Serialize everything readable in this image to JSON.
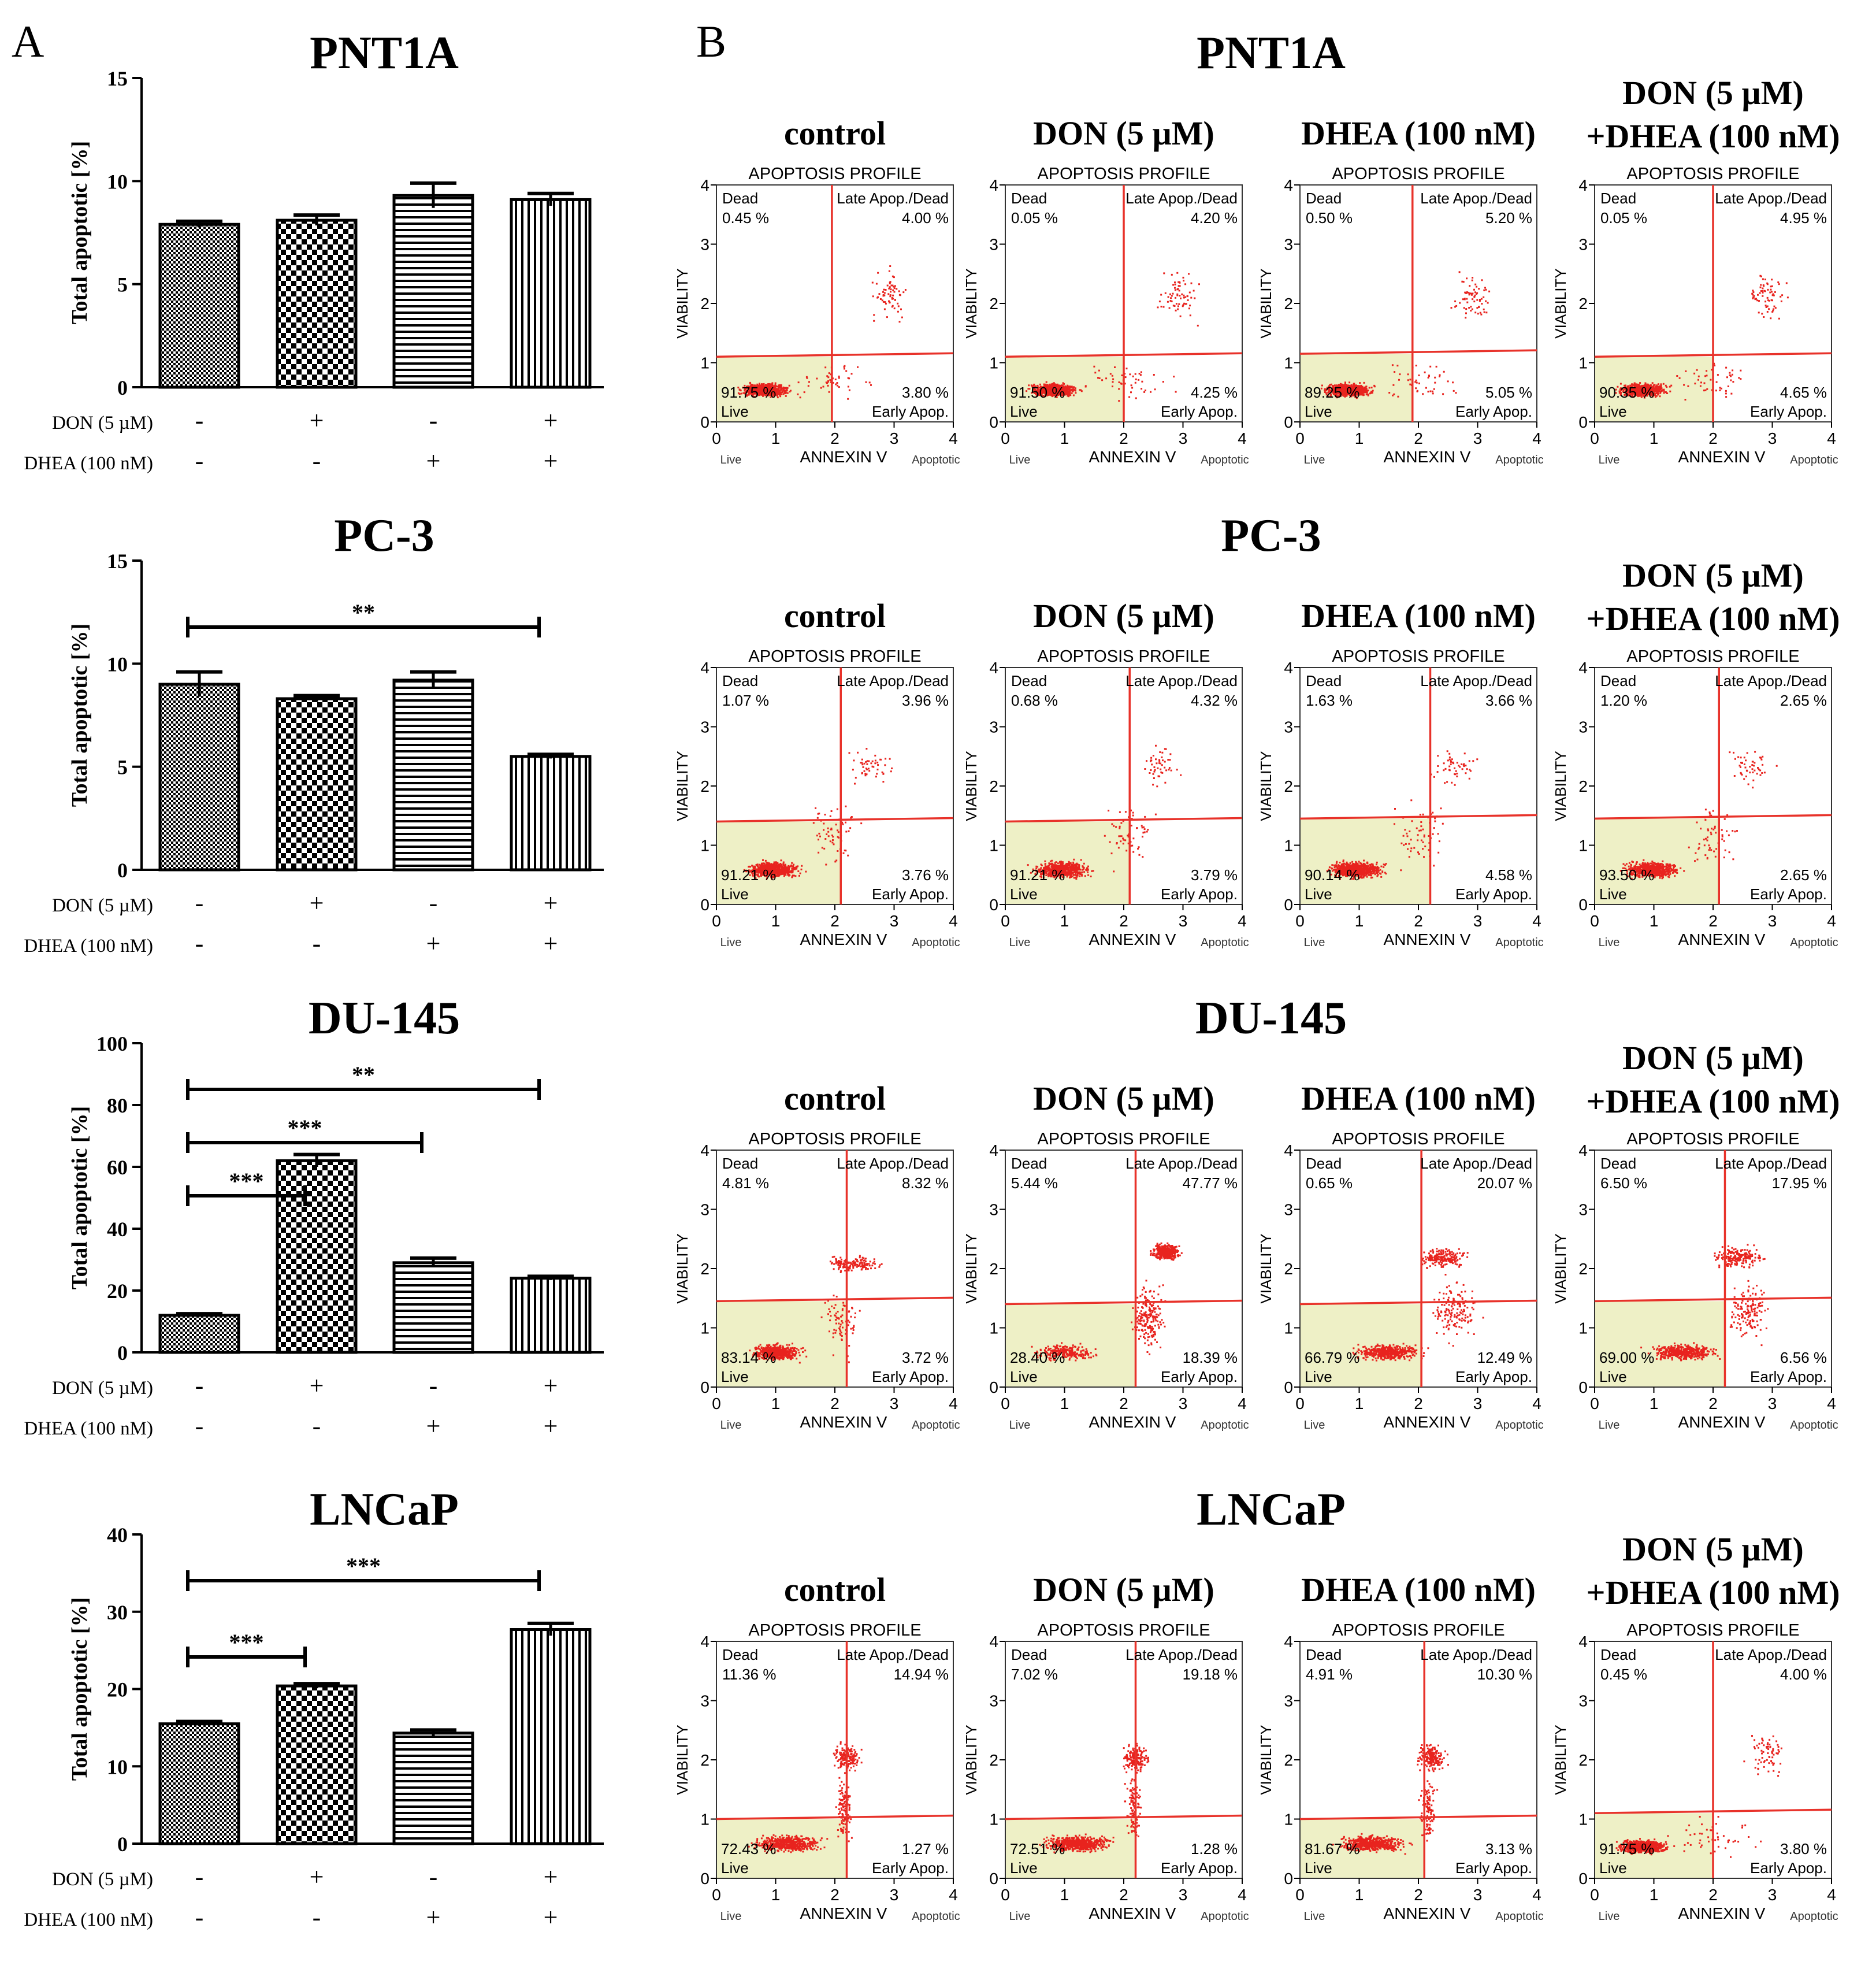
{
  "panel_labels": {
    "a": "A",
    "b": "B"
  },
  "colors": {
    "dot": "#e8231e",
    "line": "#e8322a",
    "live_fill": "#eef0c6",
    "axis": "#000000"
  },
  "quadrant_text": {
    "title": "APOPTOSIS PROFILE",
    "dead": "Dead",
    "late": "Late Apop./Dead",
    "live": "Live",
    "early": "Early Apop.",
    "ylabel": "VIABILITY",
    "xlabel": "ANNEXIN V",
    "xleft": "Live",
    "xright": "Apoptotic"
  },
  "chart_data": [
    {
      "type": "bar",
      "title": "PNT1A",
      "ylabel": "Total apoptotic [%]",
      "ylim": [
        0,
        15
      ],
      "yticks": [
        "0",
        "5",
        "10",
        "15"
      ],
      "categories": [
        "control",
        "DON",
        "DHEA",
        "DON+DHEA"
      ],
      "values": [
        7.9,
        8.1,
        9.3,
        9.1
      ],
      "errors": [
        0.15,
        0.25,
        0.6,
        0.3
      ],
      "row_labels": [
        "DON (5 µM)",
        "DHEA (100 nM)"
      ],
      "don": [
        "-",
        "+",
        "-",
        "+"
      ],
      "dhea": [
        "-",
        "-",
        "+",
        "+"
      ],
      "significance": []
    },
    {
      "type": "bar",
      "title": "PC-3",
      "ylabel": "Total apoptotic [%]",
      "ylim": [
        0,
        15
      ],
      "yticks": [
        "0",
        "5",
        "10",
        "15"
      ],
      "categories": [
        "control",
        "DON",
        "DHEA",
        "DON+DHEA"
      ],
      "values": [
        9.0,
        8.3,
        9.2,
        5.5
      ],
      "errors": [
        0.6,
        0.15,
        0.4,
        0.1
      ],
      "row_labels": [
        "DON (5 µM)",
        "DHEA (100 nM)"
      ],
      "don": [
        "-",
        "+",
        "-",
        "+"
      ],
      "dhea": [
        "-",
        "-",
        "+",
        "+"
      ],
      "significance": [
        {
          "from": 0,
          "to": 3,
          "label": "**"
        }
      ]
    },
    {
      "type": "bar",
      "title": "DU-145",
      "ylabel": "Total apoptotic [%]",
      "ylim": [
        0,
        100
      ],
      "yticks": [
        "0",
        "20",
        "40",
        "60",
        "80",
        "100"
      ],
      "categories": [
        "control",
        "DON",
        "DHEA",
        "DON+DHEA"
      ],
      "values": [
        12,
        62,
        29,
        24
      ],
      "errors": [
        0.5,
        2,
        1.5,
        0.6
      ],
      "row_labels": [
        "DON (5 µM)",
        "DHEA (100 nM)"
      ],
      "don": [
        "-",
        "+",
        "-",
        "+"
      ],
      "dhea": [
        "-",
        "-",
        "+",
        "+"
      ],
      "significance": [
        {
          "from": 0,
          "to": 3,
          "label": "**"
        },
        {
          "from": 0,
          "to": 2,
          "label": "***"
        },
        {
          "from": 0,
          "to": 1,
          "label": "***"
        }
      ]
    },
    {
      "type": "bar",
      "title": "LNCaP",
      "ylabel": "Total apoptotic [%]",
      "ylim": [
        0,
        40
      ],
      "yticks": [
        "0",
        "10",
        "20",
        "30",
        "40"
      ],
      "categories": [
        "control",
        "DON",
        "DHEA",
        "DON+DHEA"
      ],
      "values": [
        15.5,
        20.4,
        14.3,
        27.7
      ],
      "errors": [
        0.3,
        0.3,
        0.4,
        0.8
      ],
      "row_labels": [
        "DON (5 µM)",
        "DHEA (100 nM)"
      ],
      "don": [
        "-",
        "+",
        "-",
        "+"
      ],
      "dhea": [
        "-",
        "-",
        "+",
        "+"
      ],
      "significance": [
        {
          "from": 0,
          "to": 3,
          "label": "***"
        },
        {
          "from": 0,
          "to": 1,
          "label": "***"
        }
      ]
    }
  ],
  "flow_rows": [
    {
      "cell": "PNT1A",
      "plots": [
        {
          "t1": "control",
          "t2": "",
          "dead": "0.45 %",
          "late": "4.00 %",
          "live": "91.75 %",
          "early": "3.80 %",
          "hy": 1.1,
          "vx": 1.95,
          "sp": "a"
        },
        {
          "t1": "DON (5 µM)",
          "t2": "",
          "dead": "0.05 %",
          "late": "4.20 %",
          "live": "91.50 %",
          "early": "4.25 %",
          "hy": 1.1,
          "vx": 2.0,
          "sp": "a"
        },
        {
          "t1": "DHEA (100 nM)",
          "t2": "",
          "dead": "0.50 %",
          "late": "5.20 %",
          "live": "89.25 %",
          "early": "5.05 %",
          "hy": 1.15,
          "vx": 1.9,
          "sp": "a"
        },
        {
          "t1": "DON (5 µM)",
          "t2": "+DHEA (100 nM)",
          "dead": "0.05 %",
          "late": "4.95 %",
          "live": "90.35 %",
          "early": "4.65 %",
          "hy": 1.1,
          "vx": 2.0,
          "sp": "a"
        }
      ]
    },
    {
      "cell": "PC-3",
      "plots": [
        {
          "t1": "control",
          "t2": "",
          "dead": "1.07 %",
          "late": "3.96 %",
          "live": "91.21 %",
          "early": "3.76 %",
          "hy": 1.4,
          "vx": 2.1,
          "sp": "b"
        },
        {
          "t1": "DON (5 µM)",
          "t2": "",
          "dead": "0.68 %",
          "late": "4.32 %",
          "live": "91.21 %",
          "early": "3.79 %",
          "hy": 1.4,
          "vx": 2.1,
          "sp": "b"
        },
        {
          "t1": "DHEA (100 nM)",
          "t2": "",
          "dead": "1.63 %",
          "late": "3.66 %",
          "live": "90.14 %",
          "early": "4.58 %",
          "hy": 1.45,
          "vx": 2.2,
          "sp": "b"
        },
        {
          "t1": "DON (5 µM)",
          "t2": "+DHEA (100 nM)",
          "dead": "1.20 %",
          "late": "2.65 %",
          "live": "93.50 %",
          "early": "2.65 %",
          "hy": 1.45,
          "vx": 2.1,
          "sp": "b"
        }
      ]
    },
    {
      "cell": "DU-145",
      "plots": [
        {
          "t1": "control",
          "t2": "",
          "dead": "4.81 %",
          "late": "8.32 %",
          "live": "83.14 %",
          "early": "3.72 %",
          "hy": 1.45,
          "vx": 2.2,
          "sp": "c"
        },
        {
          "t1": "DON (5 µM)",
          "t2": "",
          "dead": "5.44 %",
          "late": "47.77 %",
          "live": "28.40 %",
          "early": "18.39 %",
          "hy": 1.4,
          "vx": 2.2,
          "sp": "d"
        },
        {
          "t1": "DHEA (100 nM)",
          "t2": "",
          "dead": "0.65 %",
          "late": "20.07 %",
          "live": "66.79 %",
          "early": "12.49 %",
          "hy": 1.4,
          "vx": 2.05,
          "sp": "e"
        },
        {
          "t1": "DON (5 µM)",
          "t2": "+DHEA (100 nM)",
          "dead": "6.50 %",
          "late": "17.95 %",
          "live": "69.00 %",
          "early": "6.56 %",
          "hy": 1.45,
          "vx": 2.2,
          "sp": "e"
        }
      ]
    },
    {
      "cell": "LNCaP",
      "plots": [
        {
          "t1": "control",
          "t2": "",
          "dead": "11.36 %",
          "late": "14.94 %",
          "live": "72.43 %",
          "early": "1.27 %",
          "hy": 1.0,
          "vx": 2.2,
          "sp": "f"
        },
        {
          "t1": "DON (5 µM)",
          "t2": "",
          "dead": "7.02 %",
          "late": "19.18 %",
          "live": "72.51 %",
          "early": "1.28 %",
          "hy": 1.0,
          "vx": 2.2,
          "sp": "f"
        },
        {
          "t1": "DHEA (100 nM)",
          "t2": "",
          "dead": "4.91 %",
          "late": "10.30 %",
          "live": "81.67 %",
          "early": "3.13 %",
          "hy": 1.0,
          "vx": 2.1,
          "sp": "f"
        },
        {
          "t1": "DON (5 µM)",
          "t2": "+DHEA (100 nM)",
          "dead": "0.45 %",
          "late": "4.00 %",
          "live": "91.75 %",
          "early": "3.80 %",
          "hy": 1.1,
          "vx": 2.0,
          "sp": "a"
        }
      ]
    }
  ]
}
